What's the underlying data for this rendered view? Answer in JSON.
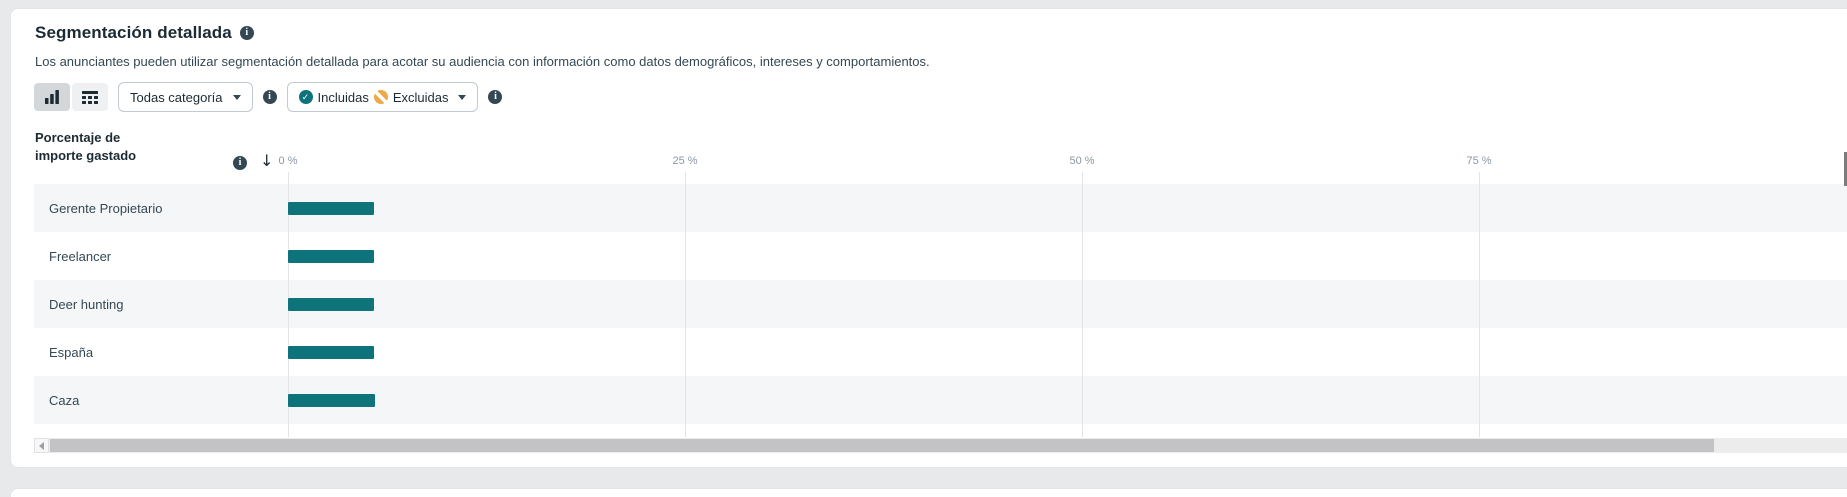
{
  "card": {
    "title": "Segmentación detallada",
    "description": "Los anunciantes pueden utilizar segmentación detallada para acotar su audiencia con información como datos demográficos, intereses y comportamientos."
  },
  "toolbar": {
    "category_dropdown_value": "Todas categoría",
    "included_label": "Incluidas",
    "excluded_label": "Excluidas"
  },
  "chart_data": {
    "type": "bar",
    "orientation": "horizontal",
    "title": "Porcentaje de importe gastado",
    "categories": [
      "Gerente Propietario",
      "Freelancer",
      "Deer hunting",
      "España",
      "Caza"
    ],
    "values": [
      5.4,
      5.4,
      5.4,
      5.4,
      5.5
    ],
    "values_note": "estimated from bar length; no numeric labels shown",
    "x_ticks": [
      "0 %",
      "25 %",
      "50 %",
      "75 %"
    ],
    "x_tick_values": [
      0,
      25,
      50,
      75
    ],
    "xlim": [
      0,
      100
    ],
    "grid": true,
    "legend": false,
    "bar_color": "#0e737a"
  },
  "icons": {
    "title_info": "info-circle",
    "category_info": "info-circle",
    "include_info": "info-circle",
    "included": "check-circle",
    "excluded": "slash-circle",
    "sort": "arrow-down",
    "view_chart": "bar-chart",
    "view_table": "table"
  },
  "colors": {
    "bar_teal": "#0e737a",
    "included_icon": "#0e737a",
    "excluded_icon": "#ecaa4b",
    "info_icon": "#344854",
    "page_background": "#e8e9eb"
  }
}
